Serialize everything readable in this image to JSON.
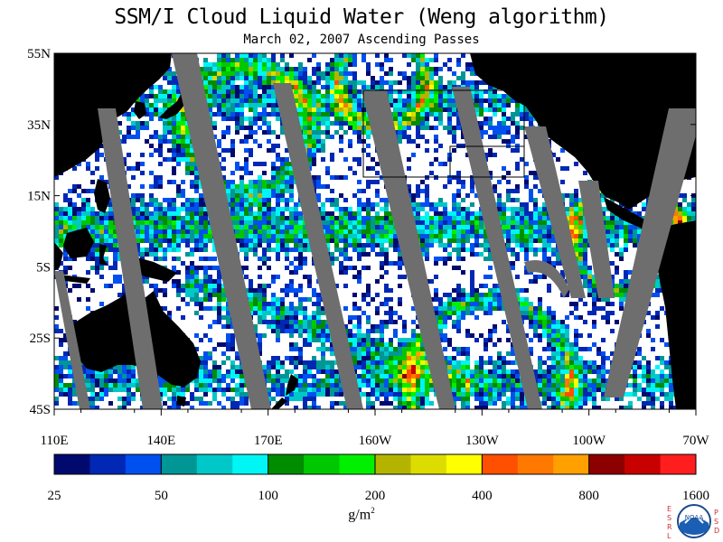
{
  "title": "SSM/I Cloud Liquid Water (Weng algorithm)",
  "subtitle": "March 02, 2007  Ascending Passes",
  "lat_labels": [
    "55N",
    "35N",
    "15N",
    "5S",
    "25S",
    "45S"
  ],
  "lon_labels": [
    "110E",
    "140E",
    "170E",
    "160W",
    "130W",
    "100W",
    "70W"
  ],
  "colorbar": {
    "colors": [
      "#000a6e",
      "#0028b4",
      "#0050f0",
      "#009696",
      "#00c8c8",
      "#00f5f5",
      "#008c00",
      "#00c800",
      "#00f000",
      "#b4b400",
      "#dcdc00",
      "#ffff00",
      "#ff5000",
      "#ff7800",
      "#ffa000",
      "#8c0000",
      "#c80000",
      "#ff1e1e"
    ],
    "labels": [
      "25",
      "50",
      "100",
      "200",
      "400",
      "800",
      "1600"
    ],
    "units_base": "g/m",
    "units_exp": "2"
  },
  "map": {
    "land_color": "#000000",
    "gap_color": "#6e6e6e",
    "background_color": "#ffffff"
  },
  "logo": {
    "center_text": "NOAA",
    "left_letters": [
      "E",
      "S",
      "R",
      "L"
    ],
    "right_letters": [
      "P",
      "S",
      "D"
    ]
  }
}
